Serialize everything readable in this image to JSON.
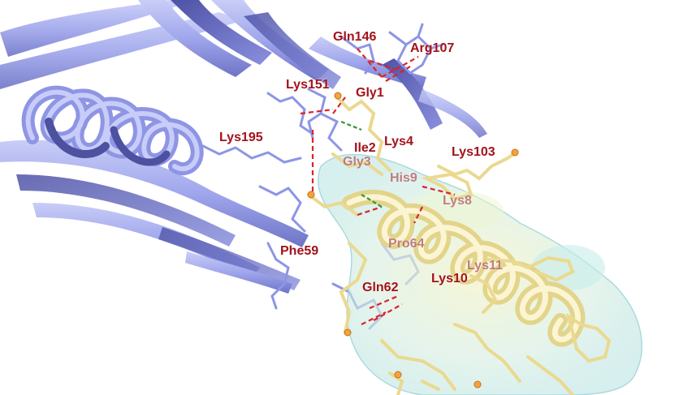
{
  "colors": {
    "receptor_ribbon": "#a9aff0",
    "receptor_ribbon_dark": "#5a5fb4",
    "receptor_sticks": "#9aa2e8",
    "peptide_sticks": "#f1e4a6",
    "surface": "#bfe6e4",
    "label": "#a3121a",
    "hbond": "#d8242b",
    "sulfur": "#ec8a1c",
    "nitrogen": "#3f52c8"
  },
  "labels": [
    {
      "id": "gln146",
      "text": "Gln146"
    },
    {
      "id": "arg107",
      "text": "Arg107"
    },
    {
      "id": "lys151",
      "text": "Lys151"
    },
    {
      "id": "gly1",
      "text": "Gly1"
    },
    {
      "id": "lys195",
      "text": "Lys195"
    },
    {
      "id": "ile2",
      "text": "Ile2"
    },
    {
      "id": "lys4",
      "text": "Lys4"
    },
    {
      "id": "lys103",
      "text": "Lys103"
    },
    {
      "id": "gly3",
      "text": "Gly3"
    },
    {
      "id": "his9",
      "text": "His9"
    },
    {
      "id": "lys8",
      "text": "Lys8"
    },
    {
      "id": "phe59",
      "text": "Phe59"
    },
    {
      "id": "pro64",
      "text": "Pro64"
    },
    {
      "id": "lys11",
      "text": "Lys11"
    },
    {
      "id": "lys10",
      "text": "Lys10"
    },
    {
      "id": "gln62",
      "text": "Gln62"
    }
  ]
}
